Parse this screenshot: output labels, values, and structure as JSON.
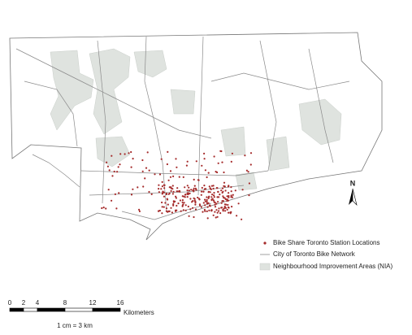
{
  "legend": {
    "items": [
      "Bike Share Toronto Station Locations",
      "City of Toronto Bike Network",
      "Neighbourhood Improvement Areas (NIA)"
    ]
  },
  "north_arrow": {
    "label": "N"
  },
  "scale_bar": {
    "ticks": [
      0,
      2,
      4,
      8,
      12,
      16
    ],
    "unit": "Kilometers",
    "ratio": "1 cm = 3 km"
  }
}
